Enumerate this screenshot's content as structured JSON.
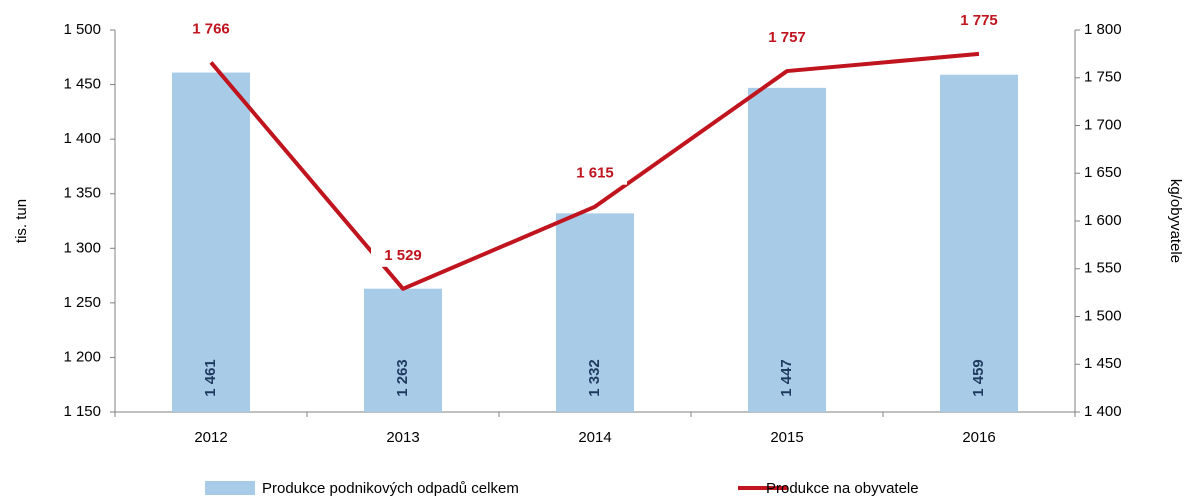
{
  "chart_data": {
    "type": "bar",
    "categories": [
      "2012",
      "2013",
      "2014",
      "2015",
      "2016"
    ],
    "y_label": "tis. tun",
    "y2_label": "kg/obyvatele",
    "ylim": [
      1150,
      1500
    ],
    "yticks": [
      {
        "value": 1150,
        "label": "1 150"
      },
      {
        "value": 1200,
        "label": "1 200"
      },
      {
        "value": 1250,
        "label": "1 250"
      },
      {
        "value": 1300,
        "label": "1 300"
      },
      {
        "value": 1350,
        "label": "1 350"
      },
      {
        "value": 1400,
        "label": "1 400"
      },
      {
        "value": 1450,
        "label": "1 450"
      },
      {
        "value": 1500,
        "label": "1 500"
      }
    ],
    "y2lim": [
      1400,
      1800
    ],
    "y2ticks": [
      {
        "value": 1400,
        "label": "1 400"
      },
      {
        "value": 1450,
        "label": "1 450"
      },
      {
        "value": 1500,
        "label": "1 500"
      },
      {
        "value": 1550,
        "label": "1 550"
      },
      {
        "value": 1600,
        "label": "1 600"
      },
      {
        "value": 1650,
        "label": "1 650"
      },
      {
        "value": 1700,
        "label": "1 700"
      },
      {
        "value": 1750,
        "label": "1 750"
      },
      {
        "value": 1800,
        "label": "1 800"
      }
    ],
    "series": [
      {
        "name": "Produkce podnikových odpadů celkem",
        "type": "bar",
        "color": "#a8cce8",
        "values": [
          1461,
          1263,
          1332,
          1447,
          1459
        ],
        "value_labels": [
          "1 461",
          "1 263",
          "1 332",
          "1 447",
          "1 459"
        ]
      },
      {
        "name": "Produkce na obyvatele",
        "type": "line",
        "axis": "y2",
        "color": "#c0141e",
        "values": [
          1766,
          1529,
          1615,
          1757,
          1775
        ],
        "value_labels": [
          "1 766",
          "1 529",
          "1 615",
          "1 757",
          "1 775"
        ]
      }
    ]
  }
}
